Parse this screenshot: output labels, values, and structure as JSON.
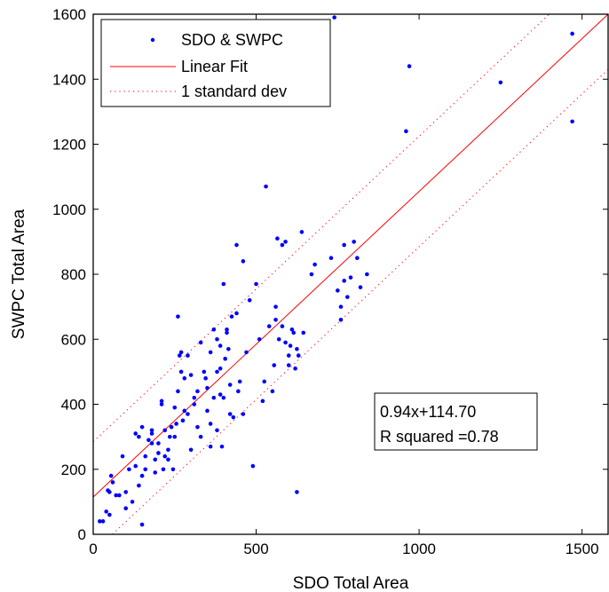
{
  "chart_data": {
    "type": "scatter",
    "xlabel": "SDO Total Area",
    "ylabel": "SWPC Total Area",
    "xlim": [
      0,
      1580
    ],
    "ylim": [
      0,
      1600
    ],
    "x_ticks": [
      0,
      500,
      1000,
      1500
    ],
    "y_ticks": [
      0,
      200,
      400,
      600,
      800,
      1000,
      1200,
      1400,
      1600
    ],
    "grid": false,
    "legend": {
      "position": "top-left",
      "entries": [
        "SDO & SWPC",
        "Linear Fit",
        "1 standard dev"
      ]
    },
    "colors": {
      "points": "#0000ff",
      "fit": "#ff0000",
      "stddev": "#ff0000"
    },
    "fit": {
      "slope": 0.94,
      "intercept": 114.7,
      "std_offset": 170
    },
    "annotation": {
      "position": "bottom-right",
      "lines": [
        "0.94x+114.70",
        "R squared =0.78"
      ]
    },
    "series": [
      {
        "name": "SDO & SWPC",
        "points": [
          [
            20,
            40
          ],
          [
            30,
            40
          ],
          [
            40,
            70
          ],
          [
            45,
            135
          ],
          [
            50,
            60
          ],
          [
            50,
            130
          ],
          [
            55,
            180
          ],
          [
            60,
            160
          ],
          [
            70,
            120
          ],
          [
            80,
            120
          ],
          [
            90,
            240
          ],
          [
            100,
            80
          ],
          [
            100,
            130
          ],
          [
            110,
            200
          ],
          [
            120,
            100
          ],
          [
            130,
            210
          ],
          [
            130,
            310
          ],
          [
            140,
            150
          ],
          [
            140,
            300
          ],
          [
            150,
            330
          ],
          [
            150,
            180
          ],
          [
            160,
            240
          ],
          [
            150,
            30
          ],
          [
            160,
            200
          ],
          [
            170,
            290
          ],
          [
            180,
            310
          ],
          [
            180,
            280
          ],
          [
            180,
            320
          ],
          [
            190,
            230
          ],
          [
            190,
            190
          ],
          [
            200,
            280
          ],
          [
            200,
            250
          ],
          [
            210,
            400
          ],
          [
            210,
            410
          ],
          [
            215,
            200
          ],
          [
            220,
            320
          ],
          [
            220,
            240
          ],
          [
            230,
            230
          ],
          [
            230,
            260
          ],
          [
            235,
            300
          ],
          [
            240,
            330
          ],
          [
            245,
            200
          ],
          [
            250,
            390
          ],
          [
            250,
            300
          ],
          [
            255,
            340
          ],
          [
            260,
            670
          ],
          [
            260,
            440
          ],
          [
            265,
            550
          ],
          [
            270,
            560
          ],
          [
            270,
            500
          ],
          [
            275,
            350
          ],
          [
            280,
            480
          ],
          [
            280,
            380
          ],
          [
            290,
            370
          ],
          [
            290,
            550
          ],
          [
            300,
            490
          ],
          [
            300,
            260
          ],
          [
            310,
            420
          ],
          [
            310,
            400
          ],
          [
            320,
            440
          ],
          [
            320,
            330
          ],
          [
            330,
            300
          ],
          [
            330,
            590
          ],
          [
            340,
            500
          ],
          [
            345,
            480
          ],
          [
            350,
            450
          ],
          [
            350,
            380
          ],
          [
            360,
            560
          ],
          [
            360,
            340
          ],
          [
            360,
            270
          ],
          [
            370,
            630
          ],
          [
            370,
            420
          ],
          [
            380,
            600
          ],
          [
            380,
            320
          ],
          [
            380,
            500
          ],
          [
            390,
            430
          ],
          [
            390,
            510
          ],
          [
            390,
            580
          ],
          [
            395,
            270
          ],
          [
            400,
            420
          ],
          [
            400,
            770
          ],
          [
            405,
            540
          ],
          [
            410,
            620
          ],
          [
            410,
            630
          ],
          [
            415,
            570
          ],
          [
            420,
            370
          ],
          [
            420,
            460
          ],
          [
            425,
            670
          ],
          [
            430,
            360
          ],
          [
            440,
            890
          ],
          [
            440,
            680
          ],
          [
            445,
            440
          ],
          [
            450,
            470
          ],
          [
            460,
            840
          ],
          [
            460,
            370
          ],
          [
            470,
            560
          ],
          [
            480,
            720
          ],
          [
            490,
            210
          ],
          [
            500,
            770
          ],
          [
            510,
            600
          ],
          [
            520,
            410
          ],
          [
            525,
            470
          ],
          [
            530,
            1070
          ],
          [
            540,
            640
          ],
          [
            550,
            440
          ],
          [
            555,
            520
          ],
          [
            560,
            660
          ],
          [
            560,
            700
          ],
          [
            565,
            910
          ],
          [
            570,
            600
          ],
          [
            580,
            640
          ],
          [
            580,
            890
          ],
          [
            590,
            900
          ],
          [
            590,
            590
          ],
          [
            600,
            550
          ],
          [
            600,
            520
          ],
          [
            605,
            580
          ],
          [
            610,
            630
          ],
          [
            615,
            620
          ],
          [
            620,
            510
          ],
          [
            625,
            130
          ],
          [
            625,
            570
          ],
          [
            630,
            550
          ],
          [
            640,
            930
          ],
          [
            645,
            620
          ],
          [
            670,
            800
          ],
          [
            680,
            830
          ],
          [
            730,
            850
          ],
          [
            740,
            1590
          ],
          [
            750,
            750
          ],
          [
            760,
            660
          ],
          [
            760,
            700
          ],
          [
            770,
            780
          ],
          [
            770,
            890
          ],
          [
            780,
            730
          ],
          [
            790,
            790
          ],
          [
            800,
            900
          ],
          [
            810,
            850
          ],
          [
            820,
            760
          ],
          [
            840,
            800
          ],
          [
            960,
            1240
          ],
          [
            970,
            1440
          ],
          [
            1250,
            1390
          ],
          [
            1470,
            1540
          ],
          [
            1470,
            1270
          ]
        ]
      }
    ]
  }
}
